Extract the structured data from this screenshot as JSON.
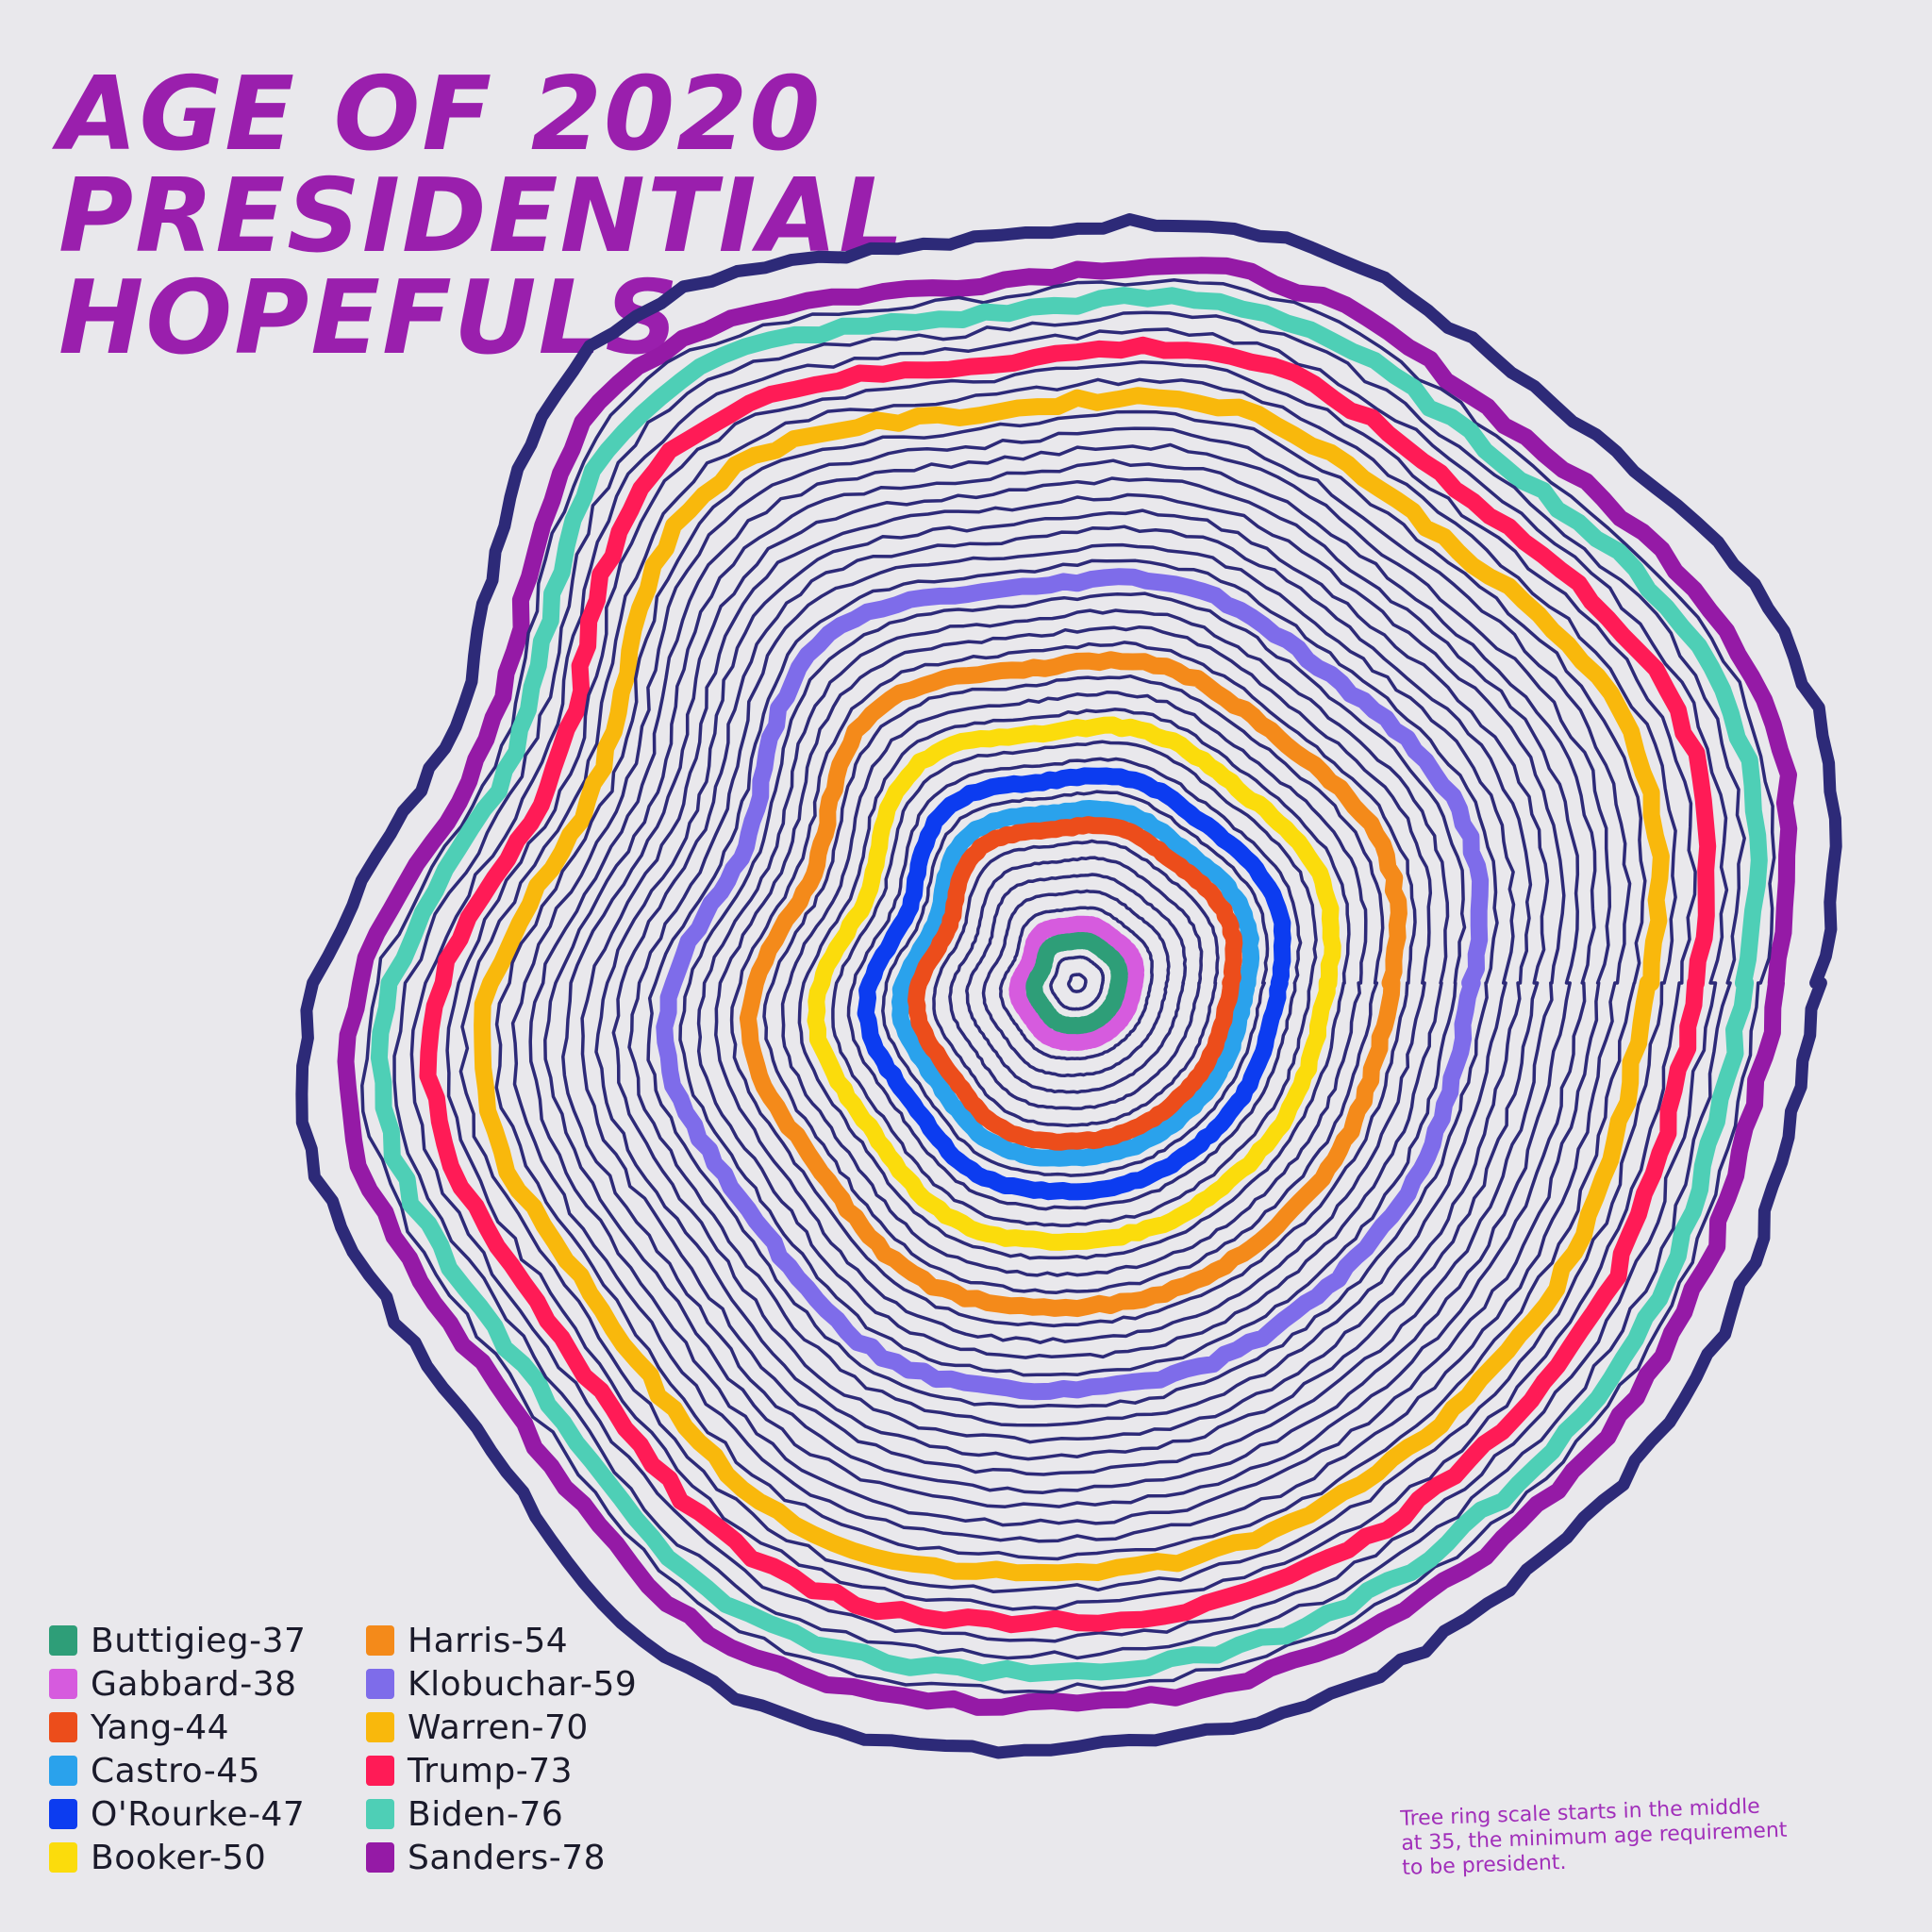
{
  "title": {
    "line1": "AGE OF 2020",
    "line2": "PRESIDENTIAL",
    "line3": "HOPEFULS"
  },
  "note": {
    "line1": "Tree ring scale starts in the middle",
    "line2": "at 35, the minimum age requirement",
    "line3": "to be president."
  },
  "chart_data": {
    "type": "radial-rings",
    "title": "AGE OF 2020 PRESIDENTIAL HOPEFULS",
    "scale_start_age": 35,
    "scale_end_age": 78,
    "ring_line_color": "#2d2a78",
    "series": [
      {
        "name": "Buttigieg",
        "age": 37,
        "label": "Buttigieg-37",
        "color": "#2e9e78"
      },
      {
        "name": "Gabbard",
        "age": 38,
        "label": "Gabbard-38",
        "color": "#d65bde"
      },
      {
        "name": "Yang",
        "age": 44,
        "label": "Yang-44",
        "color": "#ec4d1b"
      },
      {
        "name": "Castro",
        "age": 45,
        "label": "Castro-45",
        "color": "#2aa2ec"
      },
      {
        "name": "O'Rourke",
        "age": 47,
        "label": "O'Rourke-47",
        "color": "#0c3cf0"
      },
      {
        "name": "Booker",
        "age": 50,
        "label": "Booker-50",
        "color": "#fbdc0c"
      },
      {
        "name": "Harris",
        "age": 54,
        "label": "Harris-54",
        "color": "#f48a1a"
      },
      {
        "name": "Klobuchar",
        "age": 59,
        "label": "Klobuchar-59",
        "color": "#7e6cea"
      },
      {
        "name": "Warren",
        "age": 70,
        "label": "Warren-70",
        "color": "#f9b80c"
      },
      {
        "name": "Trump",
        "age": 73,
        "label": "Trump-73",
        "color": "#ff1b56"
      },
      {
        "name": "Biden",
        "age": 76,
        "label": "Biden-76",
        "color": "#4ecfb6"
      },
      {
        "name": "Sanders",
        "age": 78,
        "label": "Sanders-78",
        "color": "#951aa6"
      }
    ]
  }
}
